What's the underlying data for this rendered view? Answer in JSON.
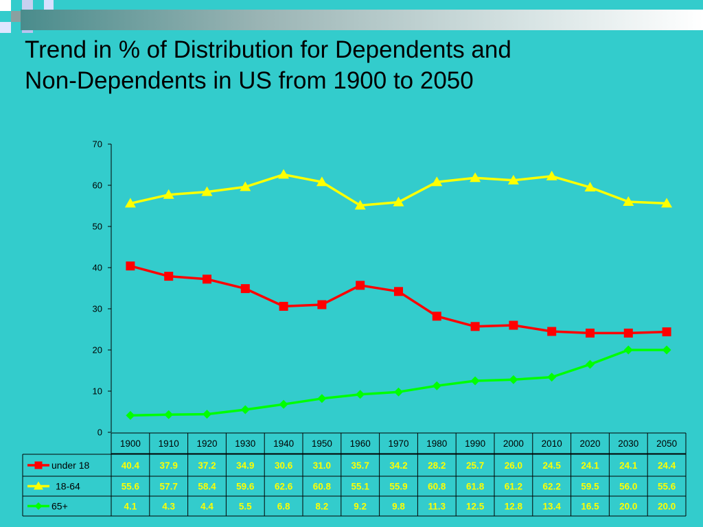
{
  "slide": {
    "title_line1": "Trend in % of Distribution for Dependents and",
    "title_line2": "Non-Dependents in US from 1900 to 2050"
  },
  "colors": {
    "background": "#33CCCC",
    "under18": "#FF0000",
    "age18_64": "#FFFF00",
    "age65plus": "#00FF00",
    "table_text": "#FFFF00"
  },
  "chart_data": {
    "type": "line",
    "title": "",
    "xlabel": "",
    "ylabel": "",
    "ylim": [
      0,
      70
    ],
    "yticks": [
      0,
      10,
      20,
      30,
      40,
      50,
      60,
      70
    ],
    "grid": false,
    "legend": "data-table-left",
    "categories": [
      "1900",
      "1910",
      "1920",
      "1930",
      "1940",
      "1950",
      "1960",
      "1970",
      "1980",
      "1990",
      "2000",
      "2010",
      "2020",
      "2030",
      "2050"
    ],
    "series": [
      {
        "name": "under 18",
        "marker": "square",
        "values": [
          40.4,
          37.9,
          37.2,
          34.9,
          30.6,
          31.0,
          35.7,
          34.2,
          28.2,
          25.7,
          26.0,
          24.5,
          24.1,
          24.1,
          24.4
        ],
        "labels": [
          "40.4",
          "37.9",
          "37.2",
          "34.9",
          "30.6",
          "31.0",
          "35.7",
          "34.2",
          "28.2",
          "25.7",
          "26.0",
          "24.5",
          "24.1",
          "24.1",
          "24.4"
        ]
      },
      {
        "name": "18-64",
        "marker": "triangle",
        "values": [
          55.6,
          57.7,
          58.4,
          59.6,
          62.6,
          60.8,
          55.1,
          55.9,
          60.8,
          61.8,
          61.2,
          62.2,
          59.5,
          56.0,
          55.6
        ],
        "labels": [
          "55.6",
          "57.7",
          "58.4",
          "59.6",
          "62.6",
          "60.8",
          "55.1",
          "55.9",
          "60.8",
          "61.8",
          "61.2",
          "62.2",
          "59.5",
          "56.0",
          "55.6"
        ]
      },
      {
        "name": "65+",
        "marker": "diamond",
        "values": [
          4.1,
          4.3,
          4.4,
          5.5,
          6.8,
          8.2,
          9.2,
          9.8,
          11.3,
          12.5,
          12.8,
          13.4,
          16.5,
          20.0,
          20.0
        ],
        "labels": [
          "4.1",
          "4.3",
          "4.4",
          "5.5",
          "6.8",
          "8.2",
          "9.2",
          "9.8",
          "11.3",
          "12.5",
          "12.8",
          "13.4",
          "16.5",
          "20.0",
          "20.0"
        ]
      }
    ]
  }
}
